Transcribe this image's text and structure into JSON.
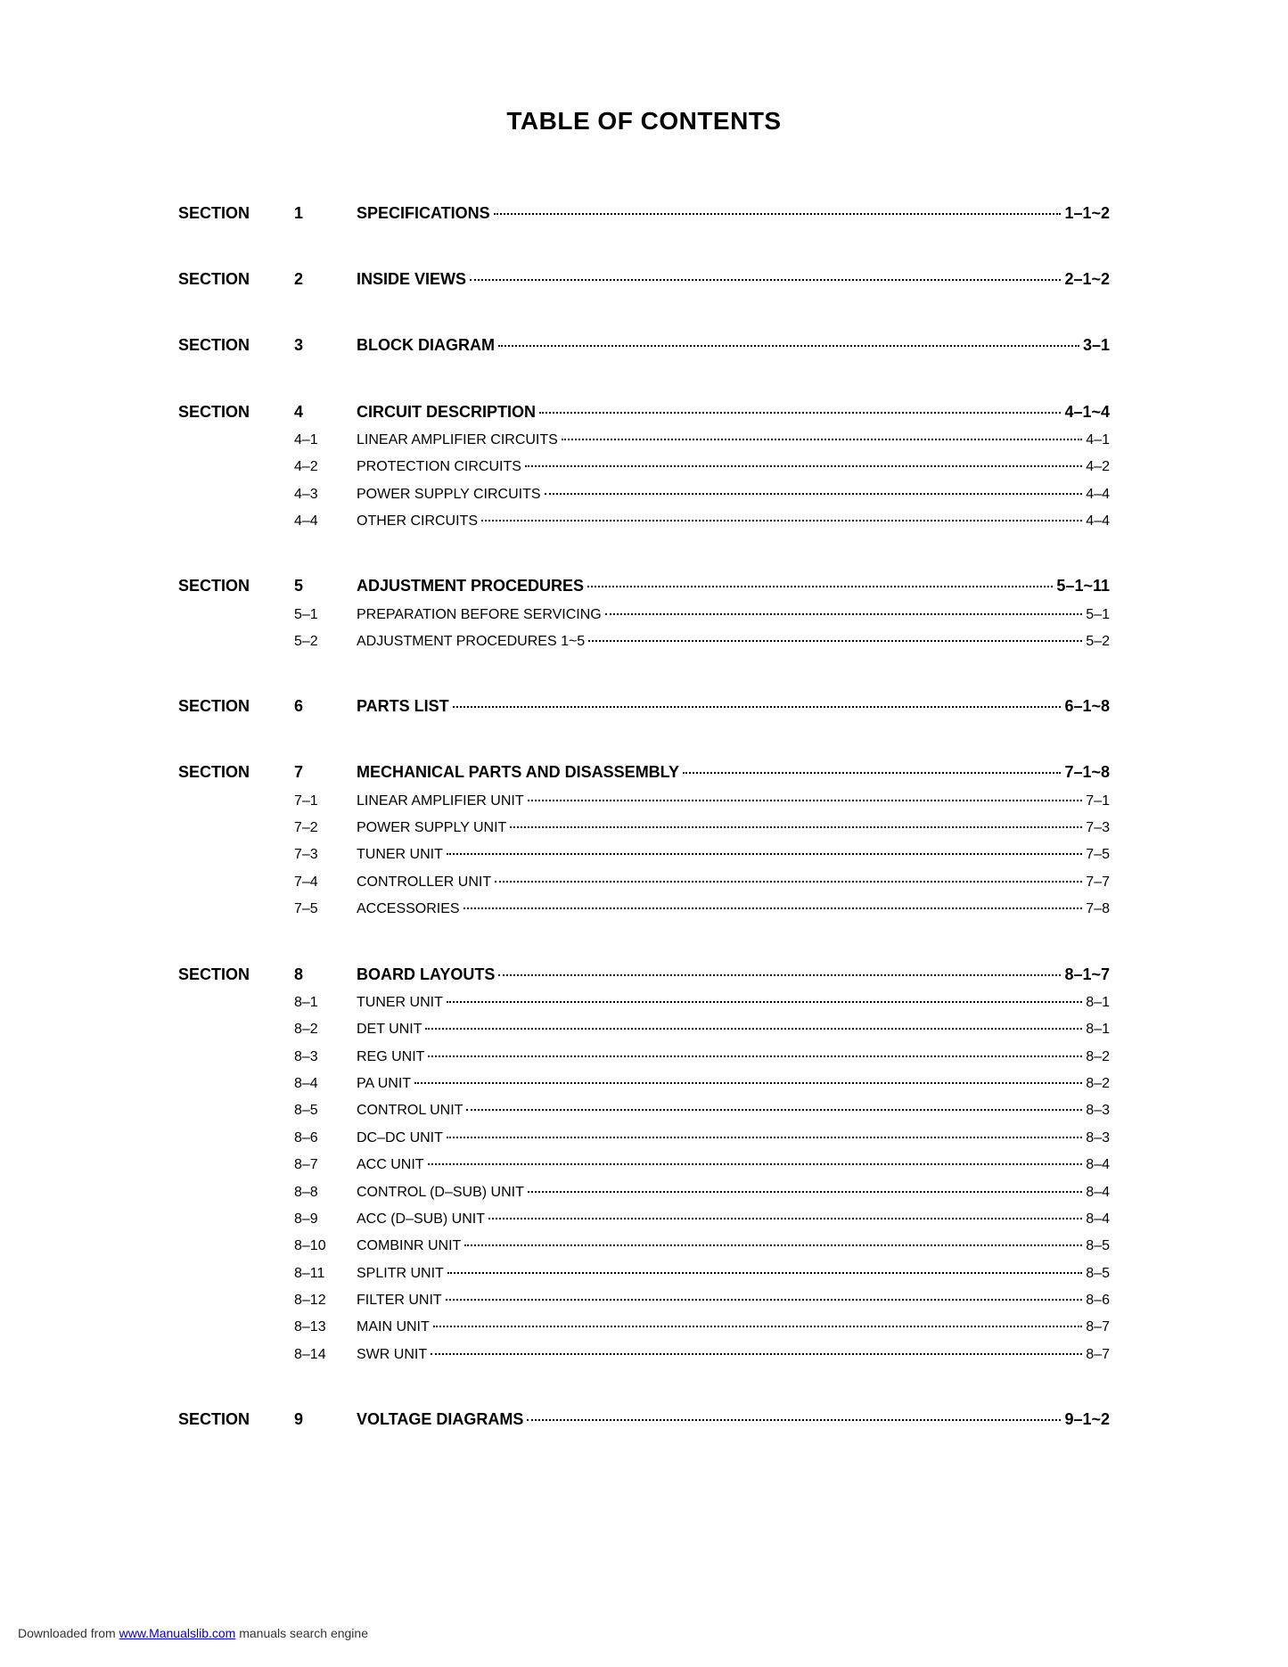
{
  "title": "TABLE OF CONTENTS",
  "section_label": "SECTION",
  "sections": [
    {
      "num": "1",
      "header": {
        "label": "SPECIFICATIONS",
        "page": "1–1~2"
      },
      "subs": []
    },
    {
      "num": "2",
      "header": {
        "label": "INSIDE VIEWS",
        "page": "2–1~2"
      },
      "subs": []
    },
    {
      "num": "3",
      "header": {
        "label": "BLOCK DIAGRAM",
        "page": "3–1"
      },
      "subs": []
    },
    {
      "num": "4",
      "header": {
        "label": "CIRCUIT DESCRIPTION",
        "page": "4–1~4"
      },
      "subs": [
        {
          "num": "4–1",
          "label": "LINEAR AMPLIFIER CIRCUITS",
          "page": "4–1"
        },
        {
          "num": "4–2",
          "label": "PROTECTION CIRCUITS",
          "page": "4–2"
        },
        {
          "num": "4–3",
          "label": "POWER SUPPLY CIRCUITS",
          "page": "4–4"
        },
        {
          "num": "4–4",
          "label": "OTHER CIRCUITS",
          "page": "4–4"
        }
      ]
    },
    {
      "num": "5",
      "header": {
        "label": "ADJUSTMENT PROCEDURES",
        "page": "5–1~11"
      },
      "subs": [
        {
          "num": "5–1",
          "label": "PREPARATION BEFORE SERVICING",
          "page": "5–1"
        },
        {
          "num": "5–2",
          "label": "ADJUSTMENT PROCEDURES 1~5",
          "page": "5–2"
        }
      ]
    },
    {
      "num": "6",
      "header": {
        "label": "PARTS LIST",
        "page": "6–1~8"
      },
      "subs": []
    },
    {
      "num": "7",
      "header": {
        "label": "MECHANICAL PARTS AND DISASSEMBLY",
        "page": "7–1~8"
      },
      "subs": [
        {
          "num": "7–1",
          "label": "LINEAR AMPLIFIER UNIT",
          "page": "7–1"
        },
        {
          "num": "7–2",
          "label": "POWER SUPPLY UNIT",
          "page": "7–3"
        },
        {
          "num": "7–3",
          "label": "TUNER UNIT",
          "page": "7–5"
        },
        {
          "num": "7–4",
          "label": "CONTROLLER UNIT",
          "page": "7–7"
        },
        {
          "num": "7–5",
          "label": "ACCESSORIES",
          "page": "7–8"
        }
      ]
    },
    {
      "num": "8",
      "header": {
        "label": "BOARD LAYOUTS",
        "page": "8–1~7"
      },
      "subs": [
        {
          "num": "8–1",
          "label": "TUNER UNIT",
          "page": "8–1"
        },
        {
          "num": "8–2",
          "label": "DET UNIT",
          "page": "8–1"
        },
        {
          "num": "8–3",
          "label": "REG UNIT",
          "page": "8–2"
        },
        {
          "num": "8–4",
          "label": "PA UNIT",
          "page": "8–2"
        },
        {
          "num": "8–5",
          "label": "CONTROL UNIT",
          "page": "8–3"
        },
        {
          "num": "8–6",
          "label": "DC–DC UNIT",
          "page": "8–3"
        },
        {
          "num": "8–7",
          "label": "ACC UNIT",
          "page": "8–4"
        },
        {
          "num": "8–8",
          "label": "CONTROL (D–SUB) UNIT",
          "page": "8–4"
        },
        {
          "num": "8–9",
          "label": "ACC (D–SUB) UNIT",
          "page": "8–4"
        },
        {
          "num": "8–10",
          "label": "COMBINR UNIT",
          "page": "8–5"
        },
        {
          "num": "8–11",
          "label": "SPLITR UNIT",
          "page": "8–5"
        },
        {
          "num": "8–12",
          "label": "FILTER UNIT",
          "page": "8–6"
        },
        {
          "num": "8–13",
          "label": "MAIN UNIT",
          "page": "8–7"
        },
        {
          "num": "8–14",
          "label": "SWR UNIT",
          "page": "8–7"
        }
      ]
    },
    {
      "num": "9",
      "header": {
        "label": "VOLTAGE DIAGRAMS",
        "page": "9–1~2"
      },
      "subs": []
    }
  ],
  "footer": {
    "prefix": "Downloaded from ",
    "link_text": "www.Manualslib.com",
    "suffix": " manuals search engine"
  }
}
